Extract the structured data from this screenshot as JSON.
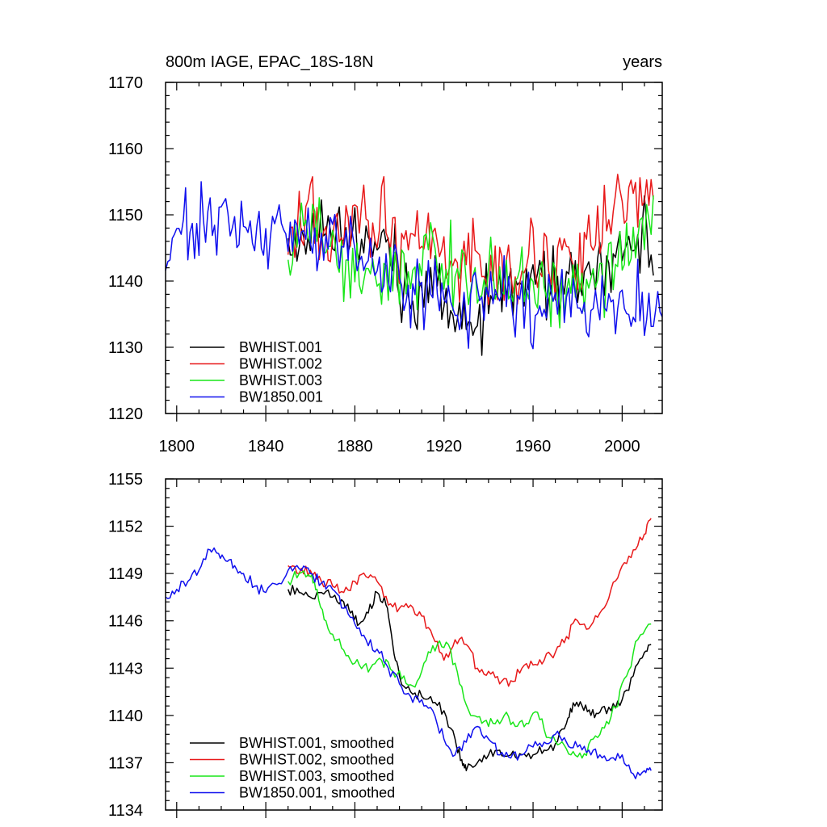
{
  "colors": {
    "black": "#000000",
    "red": "#e8191a",
    "green": "#19e619",
    "blue": "#1010ee"
  },
  "chart_data": [
    {
      "type": "line",
      "title": "800m IAGE, EPAC_18S-18N",
      "title_right": "years",
      "xlabel": "",
      "ylabel": "",
      "xlim": [
        1795,
        2018
      ],
      "ylim": [
        1120,
        1170
      ],
      "xticks": [
        1800,
        1840,
        1880,
        1920,
        1960,
        2000
      ],
      "xtick_labels": [
        "1800",
        "1840",
        "1880",
        "1920",
        "1960",
        "2000"
      ],
      "yticks": [
        1120,
        1130,
        1140,
        1150,
        1160,
        1170
      ],
      "ytick_labels": [
        "1120",
        "1130",
        "1140",
        "1150",
        "1160",
        "1170"
      ],
      "legend_position": "bottom-left",
      "series": [
        {
          "name": "BWHIST.001",
          "color": "#000000",
          "x": [
            1850,
            1855,
            1860,
            1865,
            1870,
            1875,
            1880,
            1885,
            1890,
            1895,
            1900,
            1905,
            1910,
            1915,
            1920,
            1925,
            1930,
            1935,
            1940,
            1945,
            1950,
            1955,
            1960,
            1965,
            1970,
            1975,
            1980,
            1985,
            1990,
            1995,
            2000,
            2005,
            2010,
            2014
          ],
          "y": [
            1147,
            1145,
            1148,
            1149,
            1146,
            1148,
            1147,
            1144,
            1149,
            1146,
            1141,
            1137,
            1139,
            1141,
            1138,
            1135,
            1133,
            1134,
            1137,
            1138,
            1139,
            1136,
            1139,
            1140,
            1139,
            1141,
            1139,
            1140,
            1142,
            1141,
            1143,
            1145,
            1147,
            1143
          ]
        },
        {
          "name": "BWHIST.002",
          "color": "#e8191a",
          "x": [
            1850,
            1855,
            1860,
            1865,
            1870,
            1875,
            1880,
            1885,
            1890,
            1895,
            1900,
            1905,
            1910,
            1915,
            1920,
            1925,
            1930,
            1935,
            1940,
            1945,
            1950,
            1955,
            1960,
            1965,
            1970,
            1975,
            1980,
            1985,
            1990,
            1995,
            2000,
            2005,
            2010,
            2014
          ],
          "y": [
            1150,
            1149,
            1151,
            1148,
            1150,
            1149,
            1151,
            1148,
            1150,
            1148,
            1146,
            1147,
            1146,
            1145,
            1142,
            1141,
            1143,
            1142,
            1141,
            1140,
            1141,
            1142,
            1143,
            1142,
            1143,
            1144,
            1145,
            1146,
            1148,
            1149,
            1151,
            1152,
            1154,
            1156
          ]
        },
        {
          "name": "BWHIST.003",
          "color": "#19e619",
          "x": [
            1850,
            1855,
            1860,
            1865,
            1870,
            1875,
            1880,
            1885,
            1890,
            1895,
            1900,
            1905,
            1910,
            1915,
            1920,
            1925,
            1930,
            1935,
            1940,
            1945,
            1950,
            1955,
            1960,
            1965,
            1970,
            1975,
            1980,
            1985,
            1990,
            1995,
            2000,
            2005,
            2010,
            2014
          ],
          "y": [
            1145,
            1147,
            1150,
            1146,
            1144,
            1143,
            1142,
            1141,
            1142,
            1140,
            1141,
            1142,
            1143,
            1144,
            1143,
            1142,
            1140,
            1139,
            1140,
            1138,
            1139,
            1140,
            1139,
            1137,
            1138,
            1137,
            1138,
            1140,
            1141,
            1142,
            1144,
            1146,
            1147,
            1149
          ]
        },
        {
          "name": "BW1850.001",
          "color": "#1010ee",
          "x": [
            1795,
            1800,
            1805,
            1810,
            1815,
            1820,
            1825,
            1830,
            1835,
            1840,
            1845,
            1850,
            1855,
            1860,
            1865,
            1870,
            1875,
            1880,
            1885,
            1890,
            1895,
            1900,
            1905,
            1910,
            1915,
            1920,
            1925,
            1930,
            1935,
            1940,
            1945,
            1950,
            1955,
            1960,
            1965,
            1970,
            1975,
            1980,
            1985,
            1990,
            1995,
            2000,
            2005,
            2010,
            2015,
            2018
          ],
          "y": [
            1145,
            1148,
            1147,
            1149,
            1150,
            1151,
            1150,
            1149,
            1148,
            1147,
            1148,
            1149,
            1148,
            1147,
            1146,
            1145,
            1146,
            1144,
            1143,
            1142,
            1142,
            1140,
            1139,
            1139,
            1138,
            1137,
            1136,
            1137,
            1138,
            1137,
            1138,
            1137,
            1136,
            1137,
            1138,
            1139,
            1138,
            1137,
            1136,
            1138,
            1137,
            1136,
            1137,
            1136,
            1135,
            1137
          ]
        }
      ]
    },
    {
      "type": "line",
      "title": "",
      "xlabel": "",
      "ylabel": "",
      "xlim": [
        1795,
        2018
      ],
      "ylim": [
        1134,
        1155
      ],
      "xticks": [
        1800,
        1840,
        1880,
        1920,
        1960,
        2000
      ],
      "yticks": [
        1134,
        1137,
        1140,
        1143,
        1146,
        1149,
        1152,
        1155
      ],
      "ytick_labels": [
        "1134",
        "1137",
        "1140",
        "1143",
        "1146",
        "1149",
        "1152",
        "1155"
      ],
      "legend_position": "bottom-left",
      "series": [
        {
          "name": "BWHIST.001, smoothed",
          "color": "#000000",
          "x": [
            1850,
            1855,
            1860,
            1865,
            1870,
            1875,
            1878,
            1882,
            1886,
            1890,
            1894,
            1897,
            1900,
            1905,
            1910,
            1915,
            1920,
            1925,
            1928,
            1930,
            1935,
            1940,
            1945,
            1950,
            1955,
            1960,
            1965,
            1970,
            1975,
            1978,
            1982,
            1986,
            1990,
            1995,
            2000,
            2005,
            2010,
            2013
          ],
          "y": [
            1148,
            1147.8,
            1147.5,
            1147.8,
            1147.5,
            1147.2,
            1146.5,
            1145.8,
            1146.5,
            1147.8,
            1147,
            1144.5,
            1142.5,
            1141.5,
            1141.2,
            1140.8,
            1140.3,
            1138.5,
            1137.2,
            1136.5,
            1137,
            1137.5,
            1137.8,
            1137.5,
            1137.5,
            1137.5,
            1137.8,
            1138.2,
            1139.5,
            1140.8,
            1140.6,
            1140,
            1140.2,
            1140.3,
            1141,
            1142.5,
            1144,
            1144.5
          ]
        },
        {
          "name": "BWHIST.002, smoothed",
          "color": "#e8191a",
          "x": [
            1850,
            1855,
            1860,
            1865,
            1870,
            1875,
            1880,
            1885,
            1890,
            1895,
            1900,
            1905,
            1910,
            1915,
            1920,
            1925,
            1930,
            1935,
            1940,
            1945,
            1950,
            1955,
            1960,
            1965,
            1970,
            1975,
            1980,
            1985,
            1990,
            1995,
            2000,
            2005,
            2010,
            2013
          ],
          "y": [
            1149.5,
            1149,
            1149.2,
            1148.5,
            1148.2,
            1147.8,
            1148.5,
            1148.8,
            1148.5,
            1147,
            1146.8,
            1147,
            1146.3,
            1145,
            1143.5,
            1144.8,
            1144.5,
            1143,
            1142.8,
            1142,
            1142.2,
            1143,
            1143.2,
            1143.5,
            1144,
            1145,
            1146,
            1145.5,
            1146.5,
            1148,
            1149.5,
            1150.5,
            1151.5,
            1152.5
          ]
        },
        {
          "name": "BWHIST.003, smoothed",
          "color": "#19e619",
          "x": [
            1850,
            1855,
            1860,
            1863,
            1867,
            1872,
            1877,
            1882,
            1887,
            1892,
            1897,
            1902,
            1907,
            1912,
            1917,
            1922,
            1927,
            1932,
            1937,
            1942,
            1947,
            1952,
            1957,
            1962,
            1967,
            1972,
            1977,
            1982,
            1987,
            1992,
            1997,
            2002,
            2007,
            2013
          ],
          "y": [
            1148.5,
            1149,
            1148.8,
            1148,
            1146,
            1144.8,
            1143.8,
            1143.2,
            1143,
            1143.5,
            1142.8,
            1142.5,
            1141.8,
            1143.5,
            1144.5,
            1144.5,
            1142,
            1140,
            1139.5,
            1139.5,
            1140,
            1139.3,
            1139.5,
            1140.2,
            1138.6,
            1138.2,
            1137.5,
            1137.3,
            1138.5,
            1139.2,
            1140.5,
            1142.5,
            1144.8,
            1145.8
          ]
        },
        {
          "name": "BW1850.001, smoothed",
          "color": "#1010ee",
          "x": [
            1795,
            1800,
            1805,
            1810,
            1815,
            1818,
            1822,
            1826,
            1830,
            1835,
            1840,
            1845,
            1850,
            1855,
            1860,
            1865,
            1870,
            1875,
            1880,
            1885,
            1890,
            1895,
            1900,
            1905,
            1910,
            1915,
            1920,
            1925,
            1930,
            1935,
            1940,
            1945,
            1950,
            1955,
            1960,
            1965,
            1970,
            1975,
            1980,
            1985,
            1990,
            1995,
            2000,
            2005,
            2010,
            2013
          ],
          "y": [
            1147.5,
            1148,
            1148.5,
            1149.2,
            1150.5,
            1150.3,
            1149.8,
            1149.5,
            1149,
            1148.2,
            1147.8,
            1148.3,
            1149.2,
            1149.3,
            1149,
            1148.4,
            1148,
            1146.8,
            1145.8,
            1144.8,
            1144.2,
            1143,
            1142,
            1141.2,
            1141,
            1140.3,
            1138.5,
            1137.5,
            1138.3,
            1139.3,
            1138.5,
            1137.5,
            1137.3,
            1137.5,
            1138,
            1138.3,
            1138.8,
            1138.3,
            1138,
            1137.8,
            1137.5,
            1137.3,
            1137.5,
            1136.3,
            1136.5,
            1136.5
          ]
        }
      ]
    }
  ]
}
